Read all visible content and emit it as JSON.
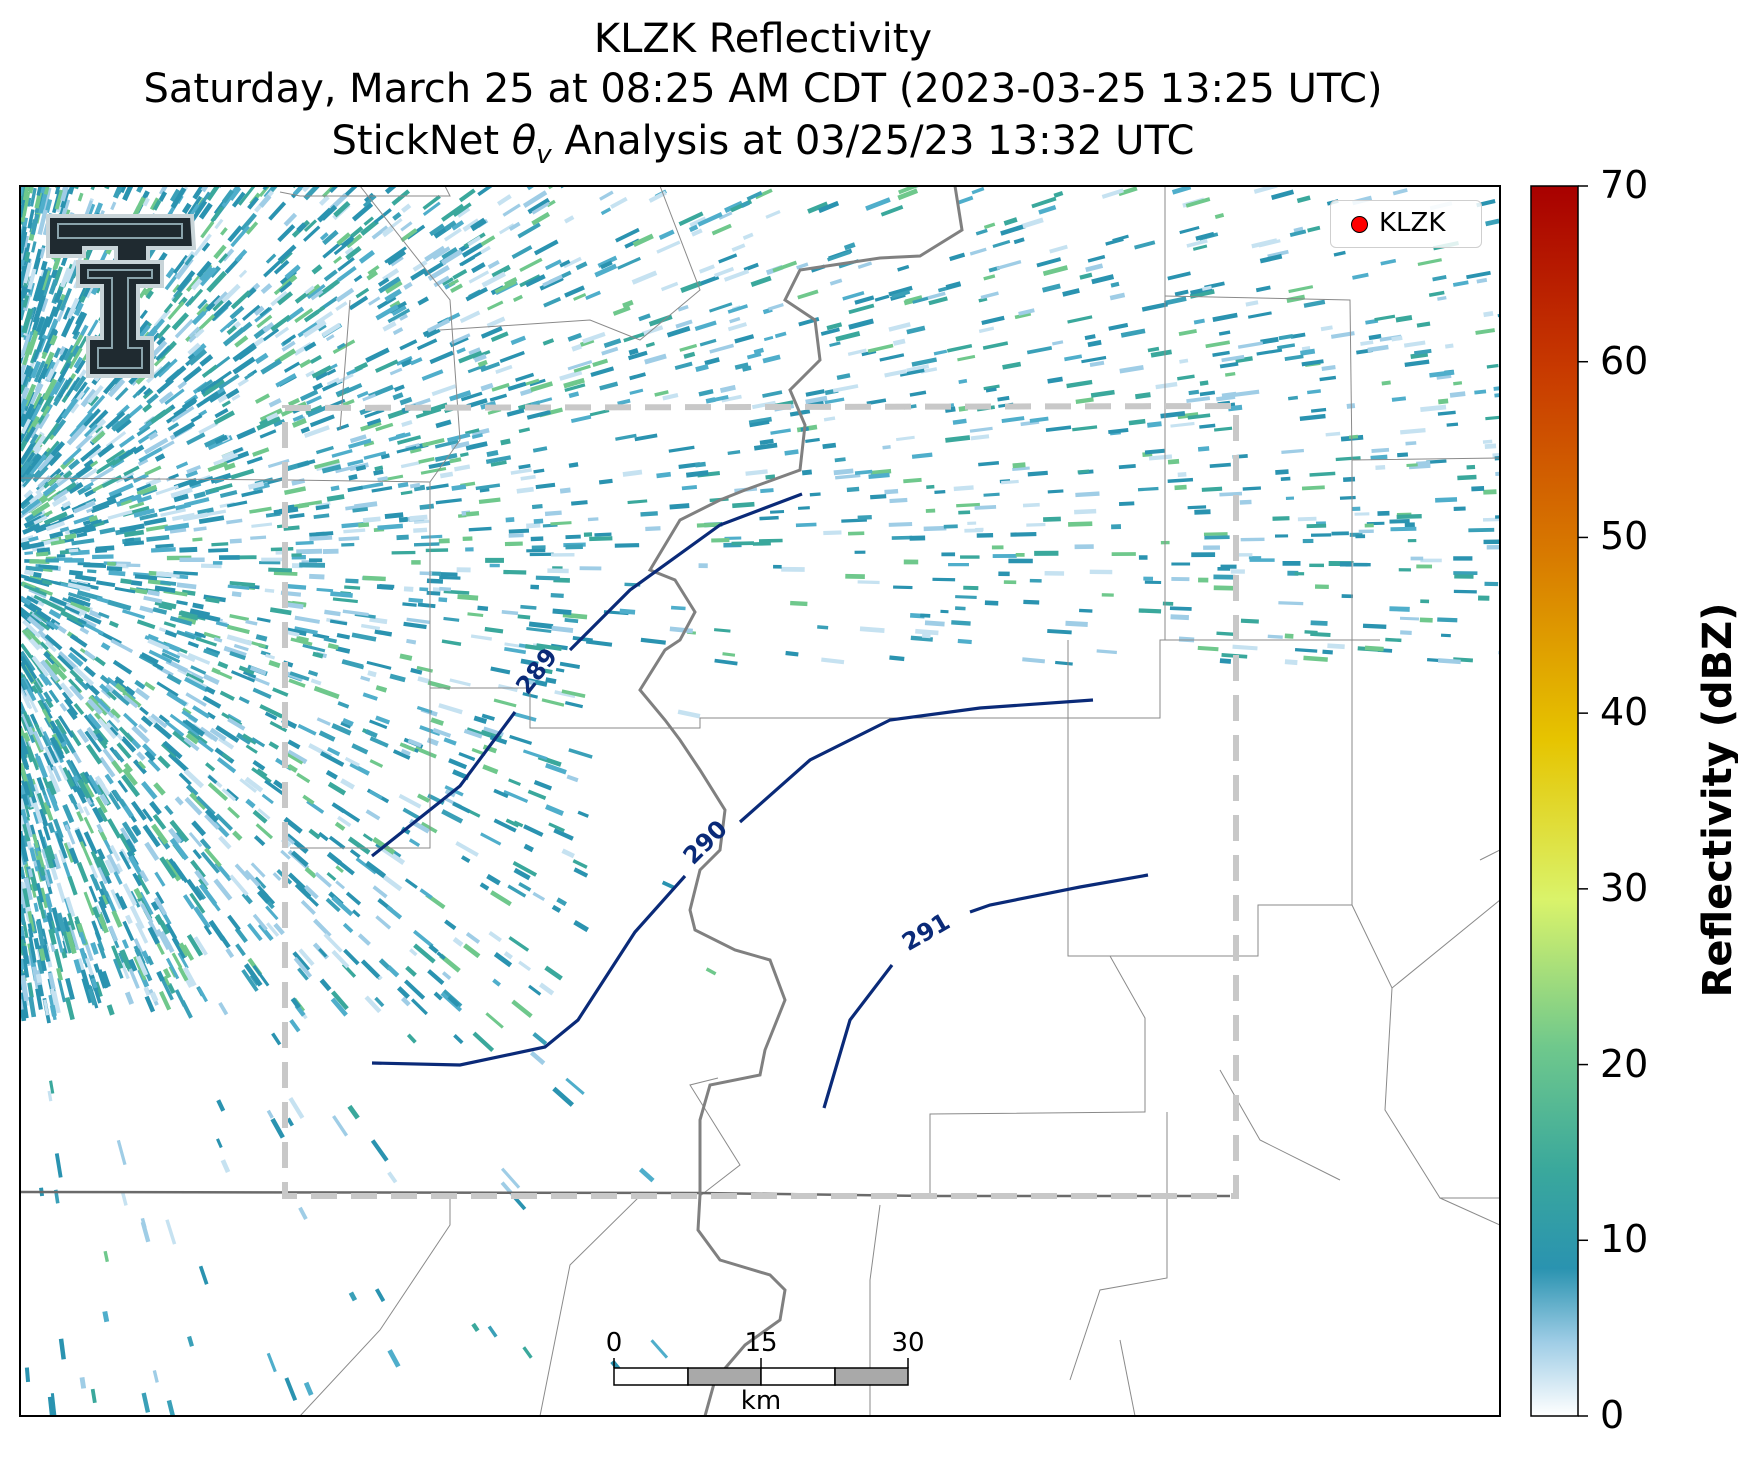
{
  "title": {
    "line1": "KLZK Reflectivity",
    "line2": "Saturday, March 25 at 08:25 AM CDT (2023-03-25 13:25 UTC)",
    "line3_prefix": "StickNet ",
    "line3_symbol": "θ",
    "line3_subscript": "v",
    "line3_suffix": " Analysis at 03/25/23 13:32 UTC"
  },
  "legend": {
    "marker_color": "#ff0000",
    "label": "KLZK"
  },
  "colorbar": {
    "label": "Reflectivity (dBZ)",
    "min": 0,
    "max": 70,
    "ticks": [
      "0",
      "10",
      "20",
      "30",
      "40",
      "50",
      "60",
      "70"
    ],
    "colors": [
      "#ffffff",
      "#9fcde6",
      "#2a93b0",
      "#3aa89c",
      "#6fc88c",
      "#daf36a",
      "#e6c400",
      "#d87a00",
      "#c83a00",
      "#a80000"
    ]
  },
  "contours": {
    "color": "#0a2a78",
    "labels": [
      "289",
      "290",
      "291"
    ]
  },
  "scale_bar": {
    "ticks": [
      "0",
      "15",
      "30"
    ],
    "unit": "km"
  },
  "logo": {
    "text": "TT",
    "icon": "texas-tech-double-t-logo"
  },
  "colors": {
    "river": "#808080",
    "boundaries": "#8a8a8a",
    "domain_box": "#c8c8c8",
    "radar_echo": "#2a93b0"
  }
}
